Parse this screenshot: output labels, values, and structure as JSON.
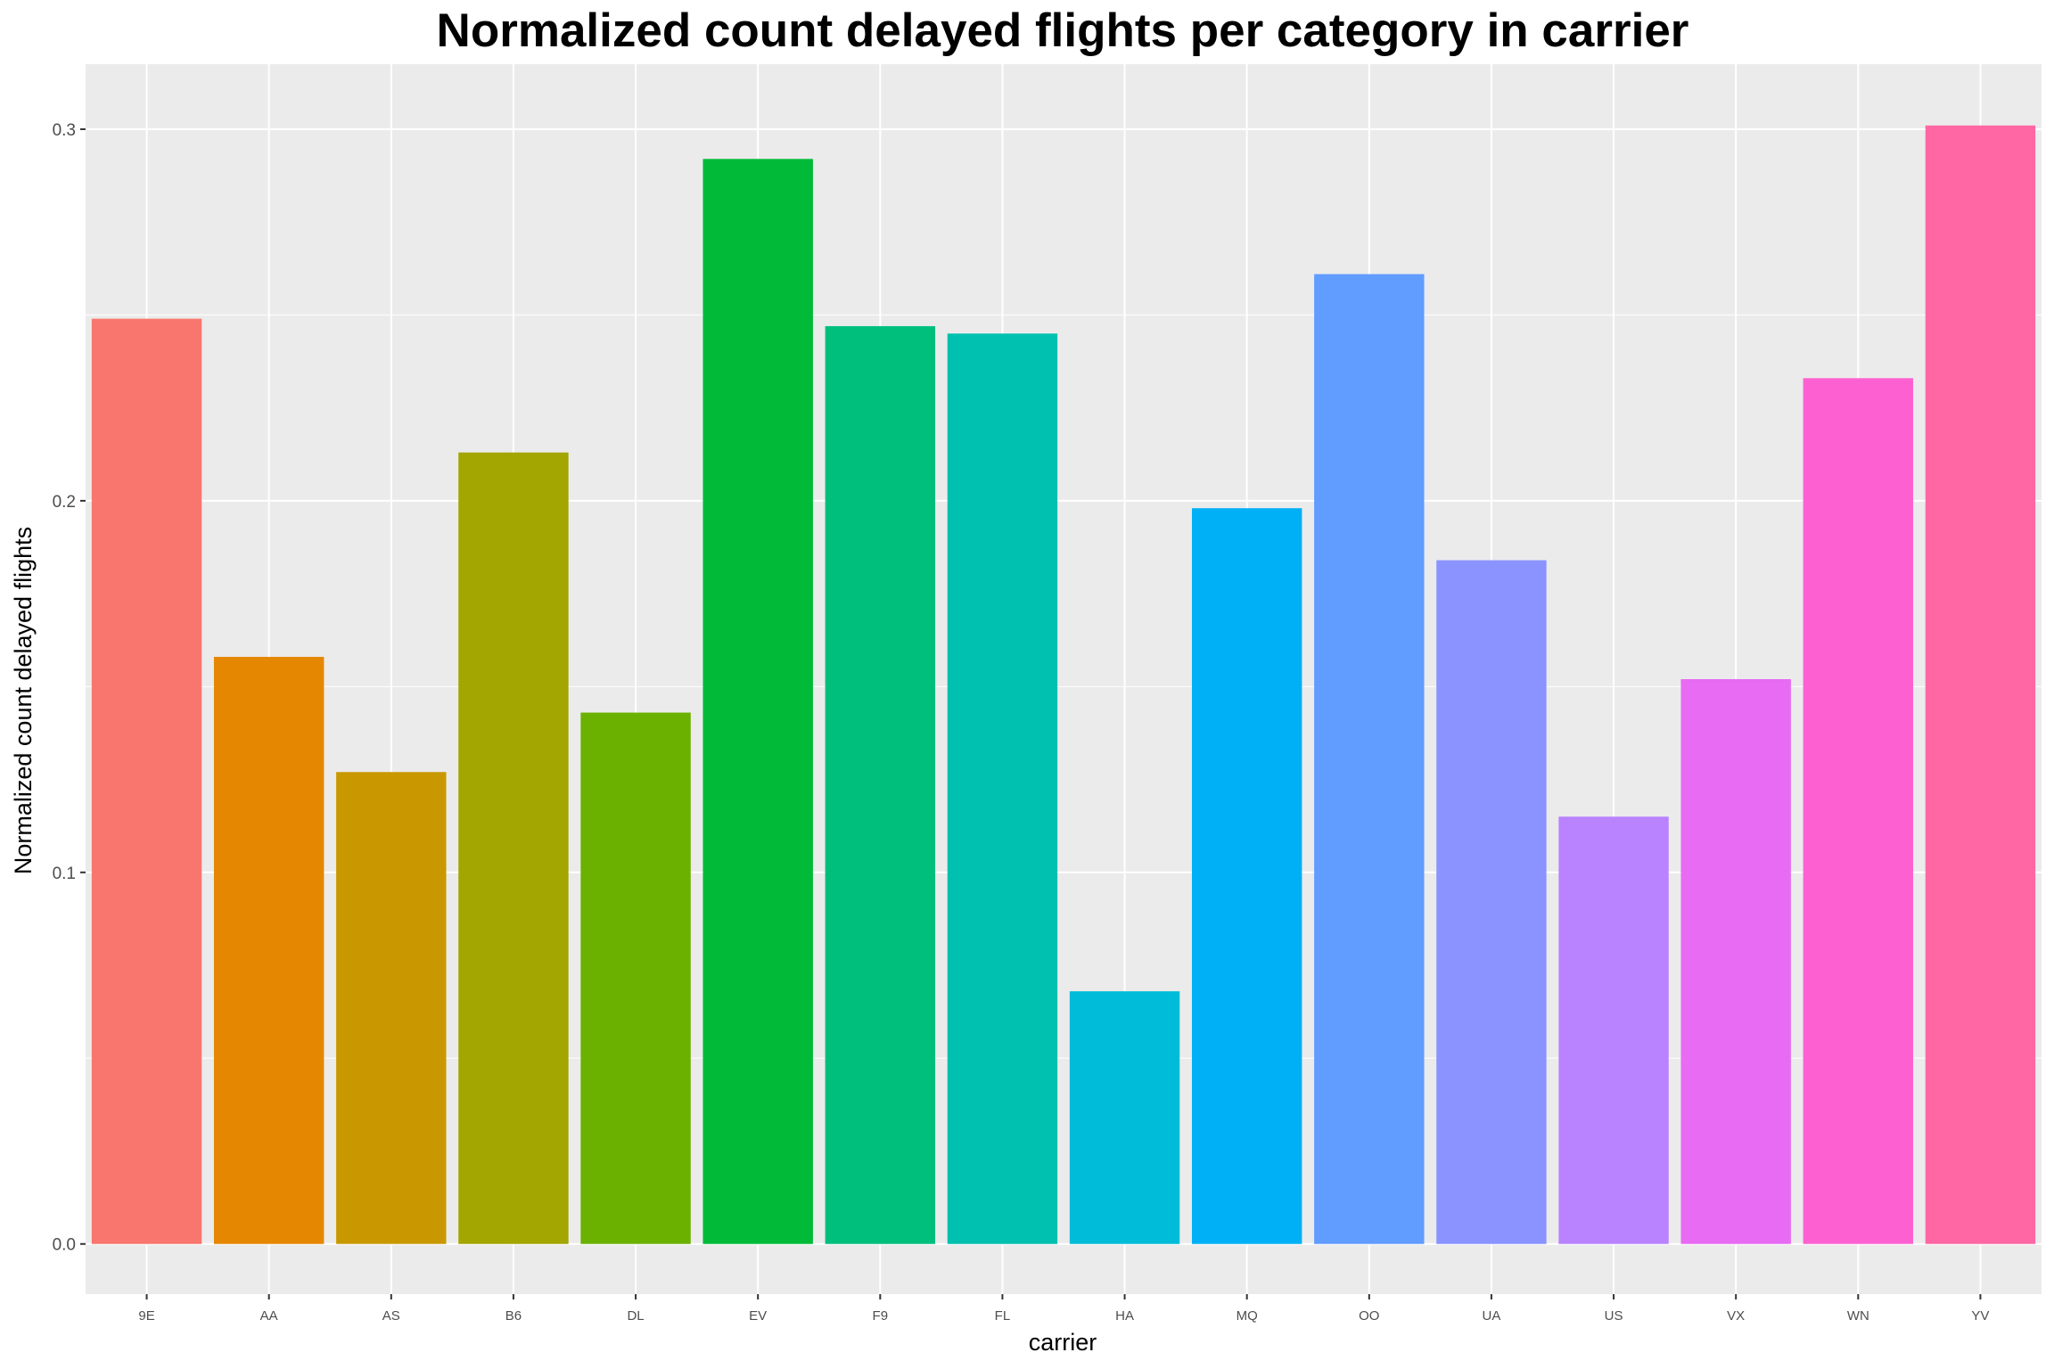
{
  "chart_data": {
    "type": "bar",
    "title": "Normalized count delayed flights per category in carrier",
    "xlabel": "carrier",
    "ylabel": "Normalized count delayed flights",
    "categories": [
      "9E",
      "AA",
      "AS",
      "B6",
      "DL",
      "EV",
      "F9",
      "FL",
      "HA",
      "MQ",
      "OO",
      "UA",
      "US",
      "VX",
      "WN",
      "YV"
    ],
    "values": [
      0.249,
      0.158,
      0.127,
      0.213,
      0.143,
      0.292,
      0.247,
      0.245,
      0.068,
      0.198,
      0.261,
      0.184,
      0.115,
      0.152,
      0.233,
      0.301
    ],
    "colors": [
      "#F8766D",
      "#E58700",
      "#C99800",
      "#A3A500",
      "#6BB100",
      "#00BA38",
      "#00BF7D",
      "#00C0AF",
      "#00BCD8",
      "#00B0F6",
      "#619CFF",
      "#8A93FF",
      "#B983FF",
      "#E76BF3",
      "#FD61D1",
      "#FF67A4"
    ],
    "yticks": [
      0.0,
      0.1,
      0.2,
      0.3
    ],
    "ytick_labels": [
      "0.0",
      "0.1",
      "0.2",
      "0.3"
    ],
    "ylim": [
      -0.0135,
      0.3175
    ],
    "grid": true,
    "legend": "none",
    "panel_background": "#EBEBEB",
    "grid_color": "#FFFFFF"
  }
}
